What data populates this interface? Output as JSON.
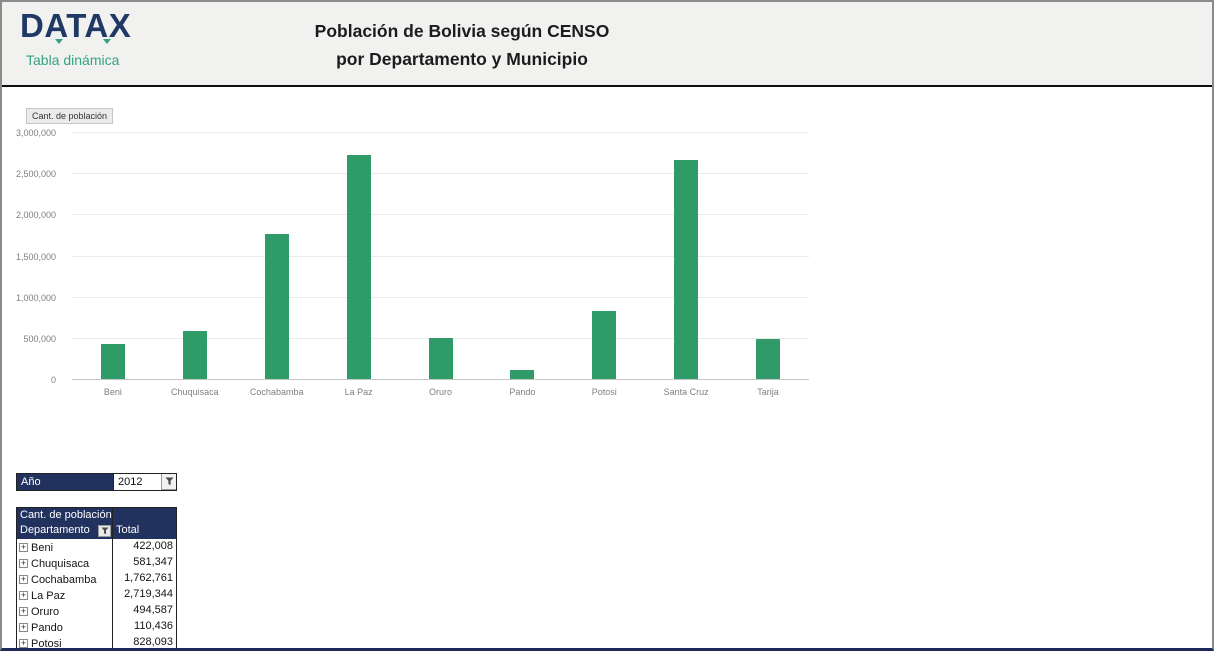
{
  "header": {
    "logo": {
      "text": "DATAX",
      "tagline": "Tabla dinámica"
    },
    "title_line1": "Población de Bolivia según CENSO",
    "title_line2": "por Departamento y Municipio"
  },
  "chart_data": {
    "type": "bar",
    "field_button": "Cant. de población",
    "categories": [
      "Beni",
      "Chuquisaca",
      "Cochabamba",
      "La Paz",
      "Oruro",
      "Pando",
      "Potosi",
      "Santa Cruz",
      "Tarija"
    ],
    "values": [
      422008,
      581347,
      1762761,
      2719344,
      494587,
      110436,
      828093,
      2655000,
      482000
    ],
    "title": "Cant. de población",
    "xlabel": "",
    "ylabel": "",
    "ylim": [
      0,
      3000000
    ],
    "ytick_interval": 500000,
    "ytick_labels": [
      "0",
      "500,000",
      "1,000,000",
      "1,500,000",
      "2,000,000",
      "2,500,000",
      "3,000,000"
    ],
    "grid": true,
    "legend_position": "none",
    "bar_color": "#2e9b69"
  },
  "filter": {
    "label": "Año",
    "value": "2012"
  },
  "pivot_table": {
    "title": "Cant. de población",
    "row_header": "Departamento",
    "value_header": "Total",
    "rows": [
      {
        "name": "Beni",
        "total": "422,008"
      },
      {
        "name": "Chuquisaca",
        "total": "581,347"
      },
      {
        "name": "Cochabamba",
        "total": "1,762,761"
      },
      {
        "name": "La Paz",
        "total": "2,719,344"
      },
      {
        "name": "Oruro",
        "total": "494,587"
      },
      {
        "name": "Pando",
        "total": "110,436"
      },
      {
        "name": "Potosi",
        "total": "828,093"
      }
    ]
  },
  "colors": {
    "navy": "#22325f",
    "logo_navy": "#1f3864",
    "green": "#2e9b69",
    "tagline_green": "#35a383",
    "band_gray": "#f1f1f0"
  }
}
